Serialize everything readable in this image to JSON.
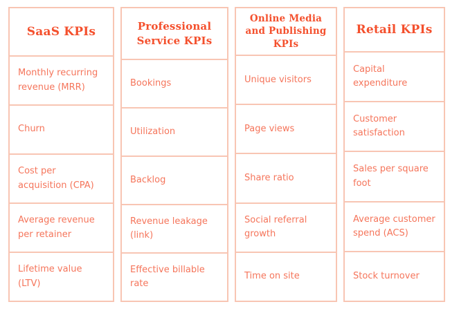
{
  "chart_data": {
    "type": "table",
    "columns": [
      "SaaS KPIs",
      "Professional Service KPIs",
      "Online Media and Publishing KPIs",
      "Retail KPIs"
    ],
    "rows": [
      [
        "Monthly recurring revenue (MRR)",
        "Bookings",
        "Unique visitors",
        "Capital expenditure"
      ],
      [
        "Churn",
        "Utilization",
        "Page views",
        "Customer satisfaction"
      ],
      [
        "Cost per acquisition (CPA)",
        "Backlog",
        "Share ratio",
        "Sales per square foot"
      ],
      [
        "Average revenue per retainer",
        "Revenue leakage (link)",
        "Social referral growth",
        "Average customer spend (ACS)"
      ],
      [
        "Lifetime value (LTV)",
        "Effective billable rate",
        "Time on site",
        "Stock turnover"
      ]
    ]
  },
  "table": {
    "columns": [
      {
        "title": "SaaS KPIs",
        "items": [
          "Monthly recurring revenue (MRR)",
          "Churn",
          "Cost per acquisition (CPA)",
          "Average revenue per retainer",
          "Lifetime value (LTV)"
        ]
      },
      {
        "title": "Professional Service KPIs",
        "items": [
          "Bookings",
          "Utilization",
          "Backlog",
          "Revenue leakage (link)",
          "Effective billable rate"
        ]
      },
      {
        "title": "Online Media and Publishing KPIs",
        "items": [
          "Unique visitors",
          "Page views",
          "Share ratio",
          "Social referral growth",
          "Time on site"
        ]
      },
      {
        "title": "Retail KPIs",
        "items": [
          "Capital expenditure",
          "Customer satisfaction",
          "Sales per square foot",
          "Average customer spend (ACS)",
          "Stock turnover"
        ]
      }
    ],
    "colors": {
      "header_text": "#f4502d",
      "body_text": "#f5755b",
      "border": "#f8c5b3",
      "background": "#ffffff"
    }
  }
}
